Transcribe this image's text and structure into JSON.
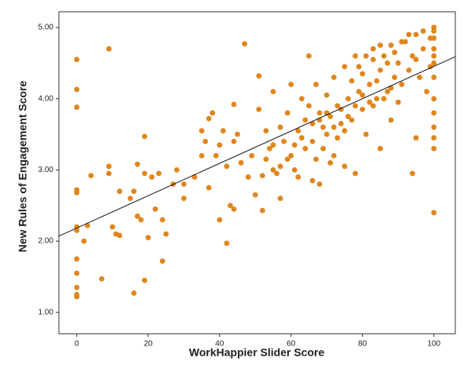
{
  "chart_data": {
    "type": "scatter",
    "x_label": "WorkHappier Slider Score",
    "y_label": "New Rules of Engagement Score",
    "color": "#df861c",
    "xlim": [
      -5,
      106
    ],
    "ylim": [
      0.7,
      5.22
    ],
    "xticks": [
      0,
      20,
      40,
      60,
      80,
      100
    ],
    "yticks": [
      {
        "value": 1,
        "label": "1.00"
      },
      {
        "value": 2,
        "label": "2.00"
      },
      {
        "value": 3,
        "label": "3.00"
      },
      {
        "value": 4,
        "label": "4.00"
      },
      {
        "value": 5,
        "label": "5.00"
      }
    ],
    "x": [
      0,
      0,
      0,
      0,
      0,
      0,
      0,
      0,
      0,
      0,
      0,
      0,
      9,
      2,
      3,
      4,
      7,
      9,
      9,
      10,
      11,
      12,
      12,
      15,
      16,
      16,
      17,
      17,
      18,
      19,
      19,
      19,
      20,
      21,
      22,
      23,
      24,
      24,
      25,
      27,
      28,
      30,
      30,
      33,
      35,
      35,
      36,
      37,
      37,
      38,
      39,
      40,
      40,
      41,
      42,
      42,
      43,
      44,
      44,
      44,
      45,
      46,
      47,
      48,
      49,
      50,
      51,
      51,
      52,
      52,
      53,
      54,
      55,
      55,
      56,
      57,
      57,
      58,
      59,
      60,
      60,
      61,
      62,
      62,
      63,
      64,
      64,
      65,
      65,
      66,
      66,
      67,
      68,
      68,
      69,
      70,
      70,
      71,
      72,
      72,
      73,
      74,
      75,
      75,
      76,
      77,
      78,
      78,
      79,
      80,
      80,
      81,
      82,
      83,
      83,
      84,
      85,
      85,
      86,
      87,
      88,
      88,
      89,
      90,
      90,
      91,
      92,
      93,
      94,
      94,
      95,
      95,
      96,
      97,
      98,
      99,
      100,
      100,
      100,
      100,
      100,
      100,
      100,
      100,
      100,
      100,
      100,
      100,
      100,
      66,
      68,
      70,
      72,
      74,
      76,
      78,
      80,
      82,
      84,
      86,
      88,
      63,
      61,
      59,
      57,
      55,
      53,
      67,
      69,
      71,
      73,
      75,
      77,
      79,
      81,
      83,
      85,
      87,
      89,
      91,
      93,
      95,
      97,
      99
    ],
    "values": [
      4.55,
      4.13,
      3.88,
      2.72,
      2.68,
      2.2,
      2.15,
      1.75,
      1.55,
      1.35,
      1.25,
      1.22,
      4.7,
      2.0,
      2.22,
      2.92,
      1.47,
      2.95,
      3.05,
      2.2,
      2.1,
      2.7,
      2.08,
      2.6,
      2.7,
      1.27,
      3.08,
      2.35,
      2.3,
      3.47,
      1.45,
      2.95,
      2.05,
      2.9,
      2.45,
      2.95,
      2.3,
      1.72,
      2.1,
      2.8,
      3.0,
      2.6,
      2.8,
      2.9,
      3.2,
      3.55,
      3.4,
      2.75,
      3.72,
      3.8,
      3.2,
      3.35,
      2.3,
      3.55,
      1.97,
      3.05,
      2.5,
      3.4,
      2.45,
      3.92,
      3.5,
      3.1,
      4.77,
      2.9,
      3.2,
      2.65,
      4.32,
      3.85,
      2.92,
      2.43,
      3.55,
      3.3,
      3.0,
      4.1,
      2.95,
      3.6,
      2.6,
      3.4,
      3.8,
      3.2,
      4.2,
      3.0,
      3.55,
      2.9,
      4.0,
      3.7,
      3.3,
      3.9,
      4.6,
      3.4,
      2.85,
      4.2,
      3.8,
      2.8,
      3.6,
      4.05,
      3.5,
      3.75,
      4.3,
      3.2,
      3.9,
      3.65,
      4.45,
      3.05,
      4.0,
      3.7,
      4.6,
      2.95,
      4.1,
      3.85,
      4.35,
      3.5,
      4.2,
      4.7,
      3.9,
      4.0,
      4.4,
      3.3,
      4.6,
      4.1,
      4.75,
      3.7,
      4.3,
      4.5,
      3.95,
      4.2,
      4.8,
      4.4,
      2.95,
      4.6,
      3.45,
      4.9,
      4.3,
      4.7,
      4.1,
      4.85,
      5.0,
      4.95,
      4.7,
      4.5,
      4.3,
      4.0,
      3.8,
      3.6,
      3.3,
      3.45,
      2.4,
      4.85,
      4.6,
      3.65,
      3.7,
      3.8,
      3.6,
      3.85,
      3.75,
      3.9,
      4.05,
      3.95,
      4.25,
      4.0,
      4.15,
      3.45,
      3.35,
      3.15,
      3.05,
      3.35,
      3.15,
      3.15,
      3.3,
      3.1,
      3.45,
      3.55,
      4.25,
      4.45,
      4.6,
      4.55,
      4.75,
      4.5,
      4.65,
      4.8,
      4.9,
      4.55,
      4.95,
      4.45
    ],
    "fit_line": {
      "x": [
        -5,
        106
      ],
      "y": [
        2.07,
        4.59
      ]
    }
  }
}
